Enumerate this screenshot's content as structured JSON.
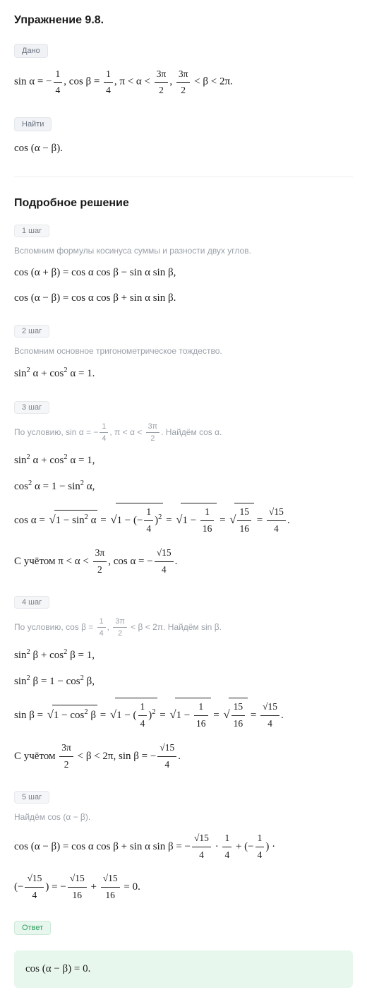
{
  "title": "Упражнение 9.8.",
  "given_label": "Дано",
  "given_formula": "sin α = −<frac>1/4</frac>, cos β = <frac>1/4</frac>, π < α < <frac>3π/2</frac>, <frac>3π/2</frac> < β < 2π.",
  "find_label": "Найти",
  "find_formula": "cos (α − β).",
  "solution_title": "Подробное решение",
  "steps": [
    {
      "label": "1 шаг",
      "text": "Вспомним формулы косинуса суммы и разности двух углов.",
      "formulas": [
        "cos (α + β) = cos α cos β − sin α sin β,",
        "cos (α − β) = cos α cos β + sin α sin β."
      ]
    },
    {
      "label": "2 шаг",
      "text": "Вспомним основное тригонометрическое тождество.",
      "formulas": [
        "sin<sup>2</sup> α + cos<sup>2</sup> α = 1."
      ]
    },
    {
      "label": "3 шаг",
      "text_html": "По условию, <span class='gray-math'>sin α = −<frac>1/4</frac>, π < α < <frac>3π/2</frac></span>. Найдём <span class='gray-math'>cos α</span>.",
      "formulas": [
        "sin<sup>2</sup> α + cos<sup>2</sup> α = 1,",
        "cos<sup>2</sup> α = 1 − sin<sup>2</sup> α,",
        "cos α = <sqrt>1 − sin<sup>2</sup> α</sqrt> = <sqrt>1 − (−<frac>1/4</frac>)<sup>2</sup></sqrt> = <sqrt>1 − <frac>1/16</frac></sqrt> = <sqrt><frac>15/16</frac></sqrt> = <frac>√15/4</frac>.",
        "С учётом π < α < <frac>3π/2</frac>, cos α = −<frac>√15/4</frac>."
      ]
    },
    {
      "label": "4 шаг",
      "text_html": "По условию, <span class='gray-math'>cos β = <frac>1/4</frac>, <frac>3π/2</frac> < β < 2π</span>. Найдём <span class='gray-math'>sin β</span>.",
      "formulas": [
        "sin<sup>2</sup> β + cos<sup>2</sup> β = 1,",
        "sin<sup>2</sup> β = 1 − cos<sup>2</sup> β,",
        "sin β = <sqrt>1 − cos<sup>2</sup> β</sqrt> = <sqrt>1 − (<frac>1/4</frac>)<sup>2</sup></sqrt> = <sqrt>1 − <frac>1/16</frac></sqrt> = <sqrt><frac>15/16</frac></sqrt> = <frac>√15/4</frac>.",
        "С учётом <frac>3π/2</frac> < β < 2π, sin β = −<frac>√15/4</frac>."
      ]
    },
    {
      "label": "5 шаг",
      "text_html": "Найдём <span class='gray-math'>cos (α − β)</span>.",
      "formulas": [
        "cos (α − β) = cos α cos β + sin α sin β = −<frac>√15/4</frac> · <frac>1/4</frac> + (−<frac>1/4</frac>) ·",
        "(−<frac>√15/4</frac>) = −<frac>√15/16</frac> + <frac>√15/16</frac> = 0."
      ]
    }
  ],
  "answer_label": "Ответ",
  "answer_formula": "cos (α − β) = 0.",
  "colors": {
    "bg": "#ffffff",
    "text": "#1a1a1a",
    "muted": "#9aa0a8",
    "tag_bg": "#f0f2f5",
    "tag_border": "#e3e6ea",
    "tag_text": "#6b7280",
    "answer_bg": "#e8f7ed",
    "sep": "#eceef1"
  }
}
